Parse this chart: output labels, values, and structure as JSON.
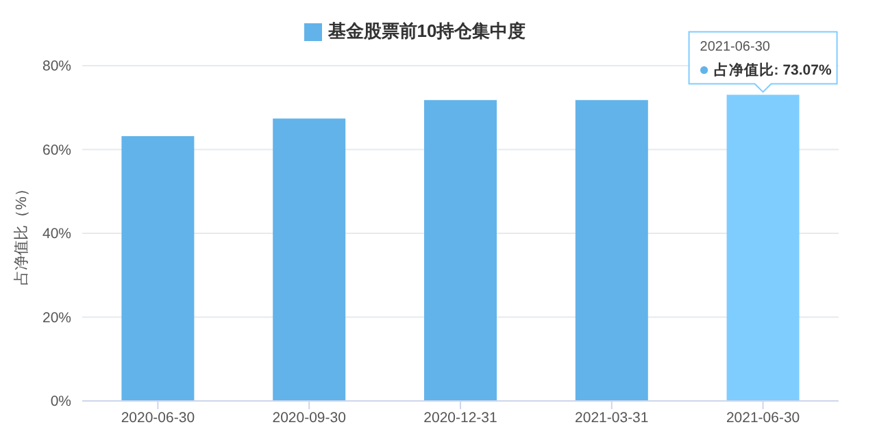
{
  "chart_data": {
    "type": "bar",
    "ylabel": "占净值比（%）",
    "categories": [
      "2020-06-30",
      "2020-09-30",
      "2020-12-31",
      "2021-03-31",
      "2021-06-30"
    ],
    "series": [
      {
        "name": "基金股票前10持仓集中度",
        "color": "#62b3ea",
        "colors": [
          "#62b3ea",
          "#62b3ea",
          "#62b3ea",
          "#62b3ea",
          "#7fcdff"
        ],
        "values": [
          63.2,
          67.4,
          71.8,
          71.8,
          73.07
        ]
      }
    ],
    "ylim": [
      0,
      80
    ],
    "yticks": [
      {
        "value": 0,
        "label": "0%"
      },
      {
        "value": 20,
        "label": "20%"
      },
      {
        "value": 40,
        "label": "40%"
      },
      {
        "value": 60,
        "label": "60%"
      },
      {
        "value": 80,
        "label": "80%"
      }
    ],
    "grid": "y",
    "legend": "top",
    "annotations": [
      {
        "text": "占净值比: 73.07%",
        "x": "2021-06-30",
        "y": 73.07
      }
    ]
  }
}
